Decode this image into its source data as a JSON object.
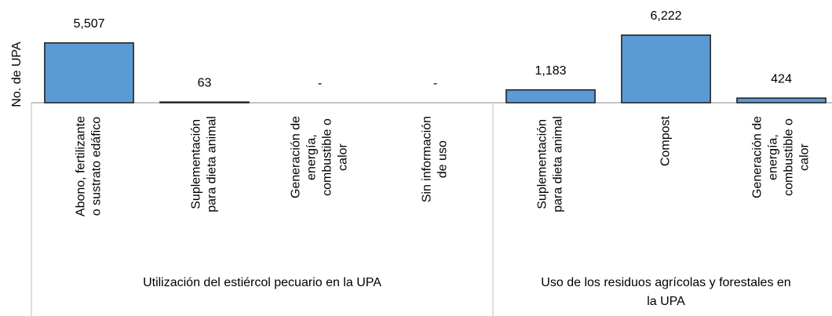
{
  "chart_data": {
    "type": "bar",
    "y_axis_label": "No. de UPA",
    "groups": [
      {
        "name": [
          "Utilización del estiércol pecuario en la UPA"
        ],
        "categories": [
          [
            "Abono, fertilizante",
            "o sustrato edáfico"
          ],
          [
            "Suplementación",
            "para dieta animal"
          ],
          [
            "Generación de",
            "energía,",
            "combustible o",
            "calor"
          ],
          [
            "Sin  información",
            "de uso"
          ]
        ],
        "values": [
          5507,
          63,
          null,
          null
        ],
        "value_labels": [
          "5,507",
          "63",
          "-",
          "-"
        ]
      },
      {
        "name": [
          "Uso de los residuos agrícolas y forestales en",
          "la UPA"
        ],
        "categories": [
          [
            "Suplementación",
            "para dieta animal"
          ],
          [
            "Compost"
          ],
          [
            "Generación de",
            "energía,",
            "combustible o",
            "calor"
          ]
        ],
        "values": [
          1183,
          6222,
          424
        ],
        "value_labels": [
          "1,183",
          "6,222",
          "424"
        ]
      }
    ],
    "color": "#5b9bd5",
    "ylim": [
      0,
      7000
    ]
  }
}
